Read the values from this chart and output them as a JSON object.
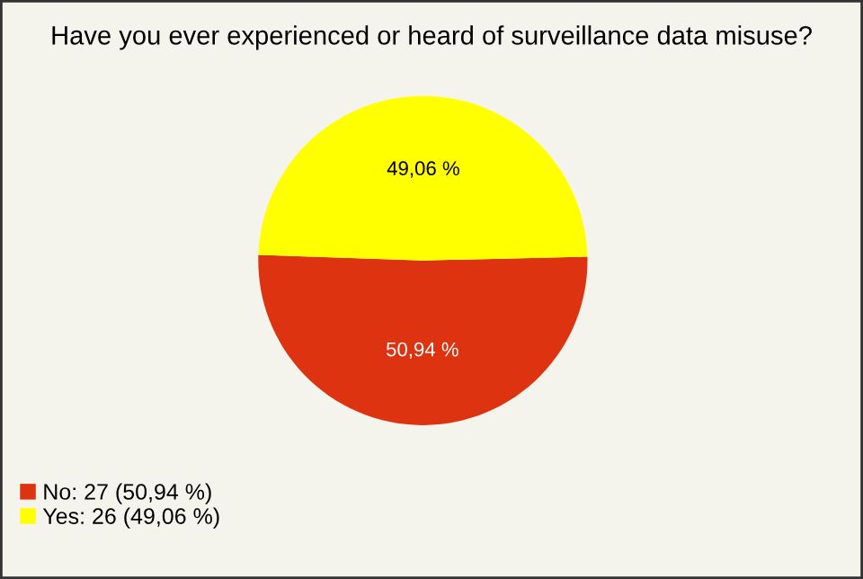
{
  "chart_data": {
    "type": "pie",
    "title": "Have you ever experienced or heard of surveillance data misuse?",
    "categories": [
      "No: 27 (50,94 %)",
      "Yes: 26 (49,06 %)"
    ],
    "values": [
      50.94,
      49.06
    ],
    "colors": [
      "#dd3311",
      "#ffff00"
    ],
    "value_labels": [
      "50,94 %",
      "49,06 %"
    ],
    "legend": "bottom left"
  }
}
